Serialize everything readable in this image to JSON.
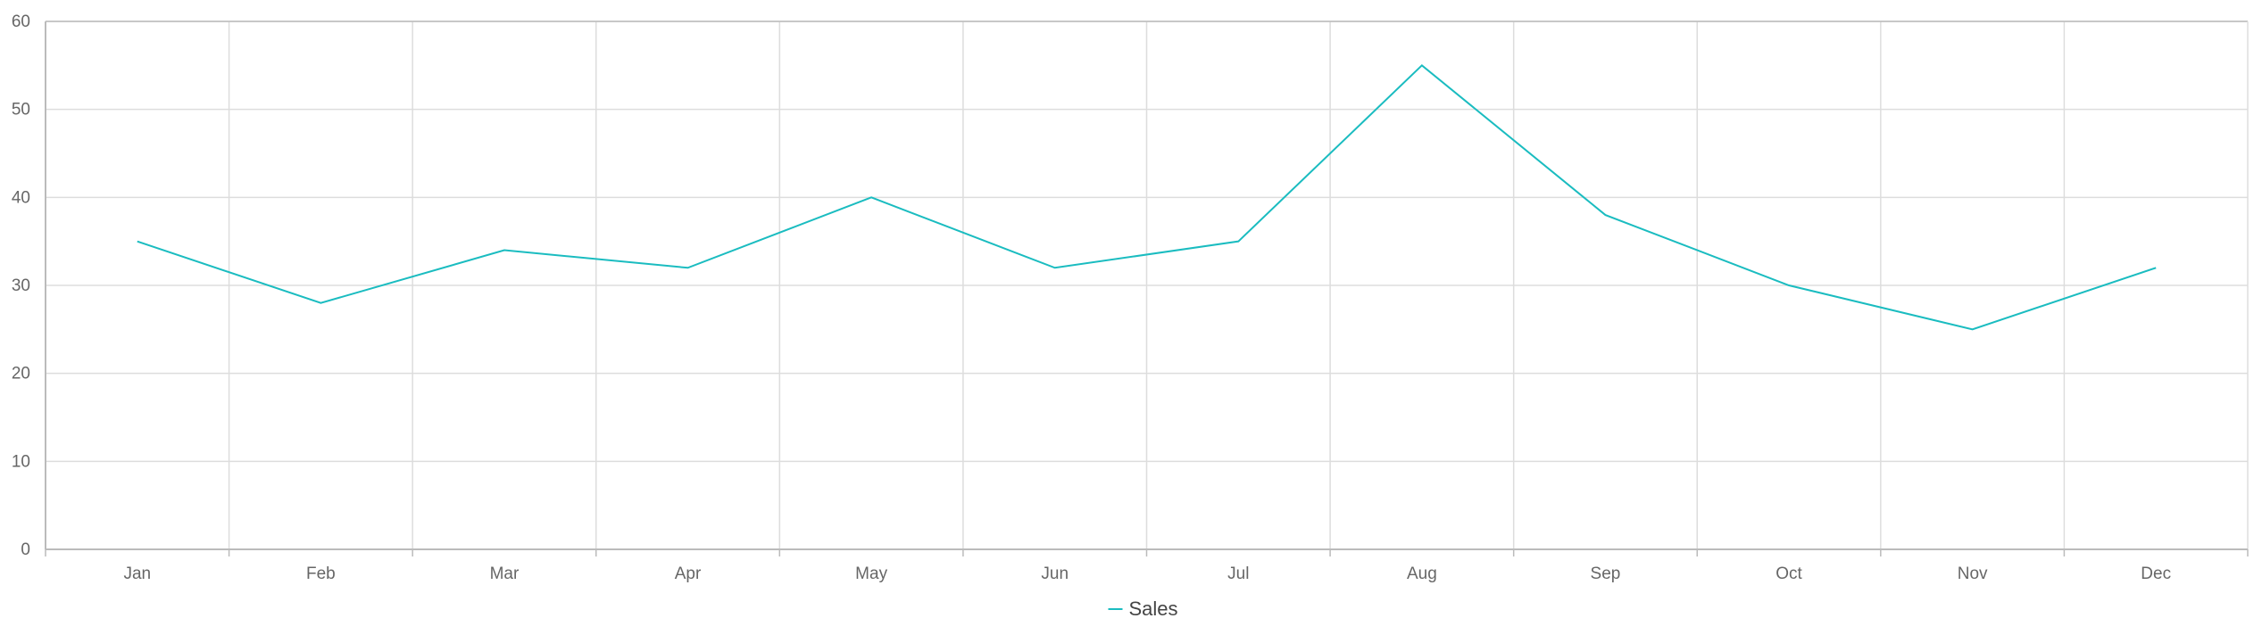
{
  "colors": {
    "series": "#1ABCC0",
    "grid": "#DDDDDD",
    "axis": "#BBBBBB",
    "text": "#666666"
  },
  "chart_data": {
    "type": "line",
    "categories": [
      "Jan",
      "Feb",
      "Mar",
      "Apr",
      "May",
      "Jun",
      "Jul",
      "Aug",
      "Sep",
      "Oct",
      "Nov",
      "Dec"
    ],
    "series": [
      {
        "name": "Sales",
        "values": [
          35,
          28,
          34,
          32,
          40,
          32,
          35,
          55,
          38,
          30,
          25,
          32
        ]
      }
    ],
    "title": "",
    "xlabel": "",
    "ylabel": "",
    "ylim": [
      0,
      60
    ],
    "yticks": [
      0,
      10,
      20,
      30,
      40,
      50,
      60
    ],
    "grid": true,
    "legend_position": "bottom-center"
  }
}
